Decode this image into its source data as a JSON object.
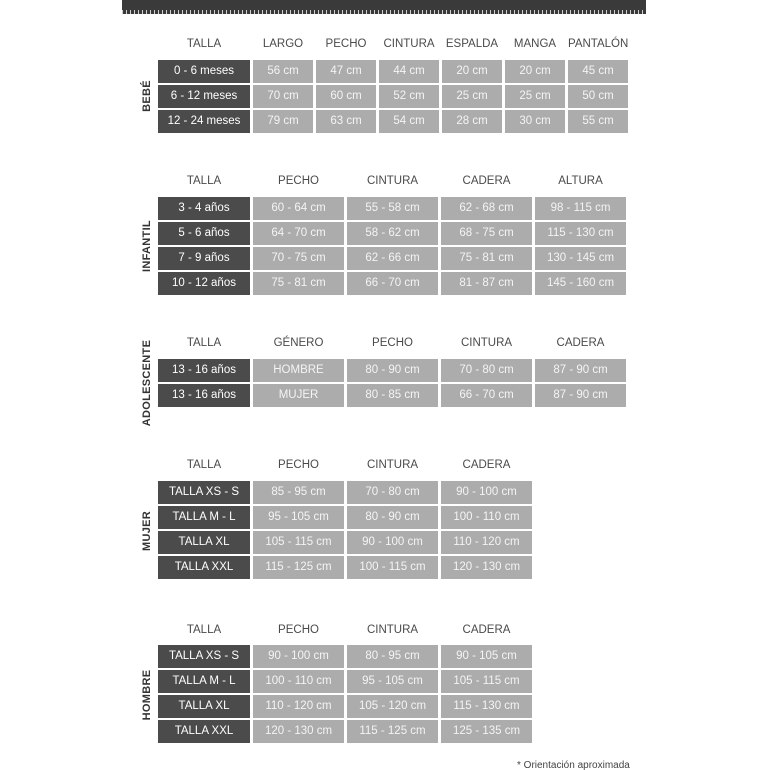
{
  "tables": [
    {
      "label": "BEBÉ",
      "headers": [
        "TALLA",
        "LARGO",
        "PECHO",
        "CINTURA",
        "ESPALDA",
        "MANGA",
        "PANTALÓN"
      ],
      "rows": [
        [
          "0 - 6 meses",
          "56 cm",
          "47 cm",
          "44 cm",
          "20 cm",
          "20 cm",
          "45 cm"
        ],
        [
          "6 - 12 meses",
          "70 cm",
          "60 cm",
          "52 cm",
          "25 cm",
          "25 cm",
          "50 cm"
        ],
        [
          "12 - 24 meses",
          "79 cm",
          "63 cm",
          "54 cm",
          "28 cm",
          "30 cm",
          "55 cm"
        ]
      ]
    },
    {
      "label": "INFANTIL",
      "headers": [
        "TALLA",
        "PECHO",
        "CINTURA",
        "CADERA",
        "ALTURA"
      ],
      "rows": [
        [
          "3 - 4 años",
          "60 - 64 cm",
          "55 - 58 cm",
          "62 - 68 cm",
          "98 - 115 cm"
        ],
        [
          "5 - 6 años",
          "64 - 70 cm",
          "58 - 62 cm",
          "68 - 75 cm",
          "115 - 130 cm"
        ],
        [
          "7 - 9 años",
          "70 - 75 cm",
          "62 - 66 cm",
          "75 - 81 cm",
          "130 - 145 cm"
        ],
        [
          "10 - 12 años",
          "75 - 81 cm",
          "66 - 70 cm",
          "81 - 87 cm",
          "145 - 160 cm"
        ]
      ]
    },
    {
      "label": "ADOLESCENTE",
      "headers": [
        "TALLA",
        "GÉNERO",
        "PECHO",
        "CINTURA",
        "CADERA"
      ],
      "rows": [
        [
          "13 - 16 años",
          "HOMBRE",
          "80 - 90 cm",
          "70 - 80 cm",
          "87 - 90 cm"
        ],
        [
          "13 - 16 años",
          "MUJER",
          "80 - 85 cm",
          "66 - 70 cm",
          "87 - 90 cm"
        ]
      ]
    },
    {
      "label": "MUJER",
      "headers": [
        "TALLA",
        "PECHO",
        "CINTURA",
        "CADERA"
      ],
      "rows": [
        [
          "TALLA XS - S",
          "85 - 95 cm",
          "70 - 80 cm",
          "90 - 100 cm"
        ],
        [
          "TALLA M - L",
          "95 - 105 cm",
          "80 - 90 cm",
          "100 - 110 cm"
        ],
        [
          "TALLA XL",
          "105 - 115 cm",
          "90 - 100 cm",
          "110 - 120 cm"
        ],
        [
          "TALLA XXL",
          "115 - 125 cm",
          "100 - 115 cm",
          "120 - 130 cm"
        ]
      ]
    },
    {
      "label": "HOMBRE",
      "headers": [
        "TALLA",
        "PECHO",
        "CINTURA",
        "CADERA"
      ],
      "rows": [
        [
          "TALLA XS - S",
          "90 - 100 cm",
          "80 - 95 cm",
          "90 - 105 cm"
        ],
        [
          "TALLA M - L",
          "100 - 110 cm",
          "95 - 105 cm",
          "105 - 115 cm"
        ],
        [
          "TALLA XL",
          "110 - 120 cm",
          "105 - 120 cm",
          "115 - 130 cm"
        ],
        [
          "TALLA XXL",
          "120 - 130 cm",
          "115 - 125 cm",
          "125 - 135 cm"
        ]
      ]
    }
  ],
  "footnote": "* Orientación aproximada",
  "colors": {
    "key_cell": "#4b4b4b",
    "value_cell": "#acacac",
    "ruler": "#3a3a3a"
  }
}
